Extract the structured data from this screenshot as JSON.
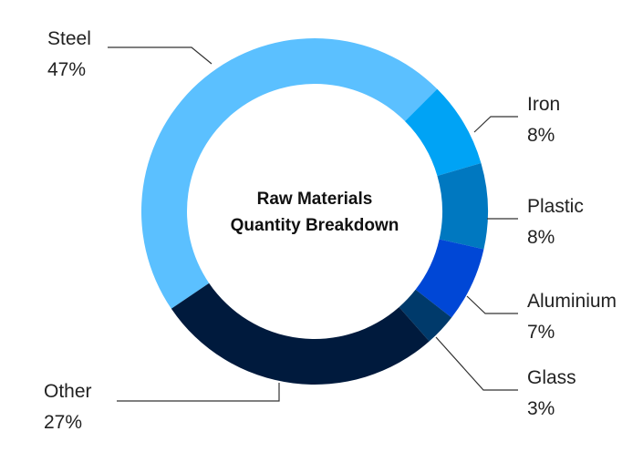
{
  "chart_data": {
    "type": "pie",
    "variant": "donut",
    "title_lines": [
      "Raw Materials",
      "Quantity Breakdown"
    ],
    "slices": [
      {
        "name": "Steel",
        "value": 47,
        "label": "47%",
        "color": "#5BC0FF"
      },
      {
        "name": "Iron",
        "value": 8,
        "label": "8%",
        "color": "#00A3F5"
      },
      {
        "name": "Plastic",
        "value": 8,
        "label": "8%",
        "color": "#0078C0"
      },
      {
        "name": "Aluminium",
        "value": 7,
        "label": "7%",
        "color": "#0047D6"
      },
      {
        "name": "Glass",
        "value": 3,
        "label": "3%",
        "color": "#003A6B"
      },
      {
        "name": "Other",
        "value": 27,
        "label": "27%",
        "color": "#001A3D"
      }
    ]
  }
}
